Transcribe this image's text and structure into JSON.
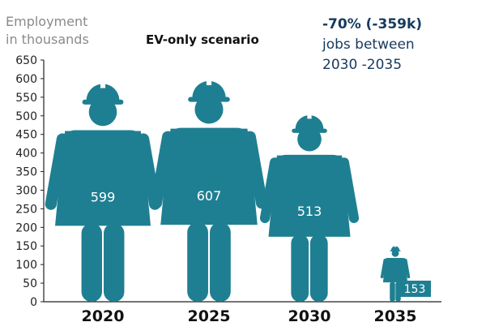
{
  "chart_data": {
    "type": "bar",
    "title": "EV-only scenario",
    "ylabel": "Employment\nin thousands",
    "xlabel": "",
    "categories": [
      "2020",
      "2025",
      "2030",
      "2035"
    ],
    "values": [
      599,
      607,
      513,
      153
    ],
    "data_labels": [
      "599",
      "607",
      "513",
      "153"
    ],
    "ylim": [
      0,
      650
    ],
    "yticks": [
      0,
      50,
      100,
      150,
      200,
      250,
      300,
      350,
      400,
      450,
      500,
      550,
      600,
      650
    ],
    "grid": false,
    "legend": "none",
    "annotation": {
      "highlight": "-70% (-359k)",
      "text_line1": "jobs between",
      "text_line2": "2030 -2035"
    },
    "colors": {
      "figure": "#1f7f92",
      "annotation": "#163a5f",
      "axis_label": "#8a8a8a",
      "label_box": "#1f7f92"
    },
    "mark_icon": "worker-with-hard-hat-icon"
  }
}
